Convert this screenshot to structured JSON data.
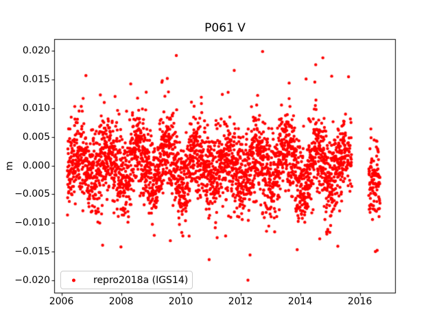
{
  "figure": {
    "background_color": "#ffffff",
    "axis_color": "#000000",
    "text_color": "#000000"
  },
  "chart_data": {
    "type": "scatter",
    "title": "P061 V",
    "xlabel": "",
    "ylabel": "m",
    "xlim": [
      2005.78,
      2017.18
    ],
    "ylim": [
      -0.0222,
      0.022
    ],
    "grid": false,
    "xticks": [
      {
        "value": 2006,
        "label": "2006"
      },
      {
        "value": 2008,
        "label": "2008"
      },
      {
        "value": 2010,
        "label": "2010"
      },
      {
        "value": 2012,
        "label": "2012"
      },
      {
        "value": 2014,
        "label": "2014"
      },
      {
        "value": 2016,
        "label": "2016"
      }
    ],
    "yticks": [
      {
        "value": 0.02,
        "label": "0.020"
      },
      {
        "value": 0.015,
        "label": "0.015"
      },
      {
        "value": 0.01,
        "label": "0.010"
      },
      {
        "value": 0.005,
        "label": "0.005"
      },
      {
        "value": 0.0,
        "label": "0.000"
      },
      {
        "value": -0.005,
        "label": "−0.005"
      },
      {
        "value": -0.01,
        "label": "−0.010"
      },
      {
        "value": -0.015,
        "label": "−0.015"
      },
      {
        "value": -0.02,
        "label": "−0.020"
      }
    ],
    "legend": {
      "location": "lower left",
      "border_color": "#cccccc",
      "background_color": "rgba(255,255,255,0.8)",
      "entries": [
        {
          "label": "repro2018a (IGS14)",
          "marker": "circle",
          "color": "#ff0000"
        }
      ]
    },
    "series": [
      {
        "name": "repro2018a (IGS14)",
        "x_unit": "decimal_year",
        "y_unit": "m",
        "marker": {
          "shape": "circle",
          "color": "#ff0000",
          "radius_px": 2.2
        },
        "synthesis": {
          "seed": 61114,
          "segments": [
            {
              "start": 2006.2,
              "end": 2015.52,
              "samples_per_year": 345,
              "dropout": 0.1,
              "mean_offset": 0.0
            },
            {
              "start": 2015.52,
              "end": 2015.73,
              "samples_per_year": 345,
              "dropout": 0.55,
              "mean_offset": 0.0
            },
            {
              "start": 2016.3,
              "end": 2016.68,
              "samples_per_year": 310,
              "dropout": 0.12,
              "mean_offset": -0.004
            }
          ],
          "seasonal_amplitude": 0.0026,
          "seasonal_phase_yearfrac": 0.55,
          "amplitude_mod_fraction": 0.35,
          "noise_std": 0.0036,
          "heavy_tail_fraction": 0.02,
          "heavy_tail_scale": 2.2,
          "soft_limit": 0.0145,
          "soft_compress": 0.25,
          "hard_clamp": 0.0202
        },
        "outliers": [
          [
            2012.74,
            0.0199
          ],
          [
            2009.85,
            0.0192
          ],
          [
            2014.76,
            0.0188
          ],
          [
            2014.52,
            0.0176
          ],
          [
            2011.79,
            0.0166
          ],
          [
            2006.82,
            0.0157
          ],
          [
            2015.62,
            0.0155
          ],
          [
            2009.38,
            0.0148
          ],
          [
            2013.63,
            0.0144
          ],
          [
            2012.25,
            -0.02
          ],
          [
            2010.95,
            -0.0164
          ],
          [
            2012.32,
            -0.0156
          ],
          [
            2016.52,
            -0.015
          ],
          [
            2016.58,
            -0.0148
          ],
          [
            2007.38,
            -0.0139
          ]
        ]
      }
    ]
  }
}
